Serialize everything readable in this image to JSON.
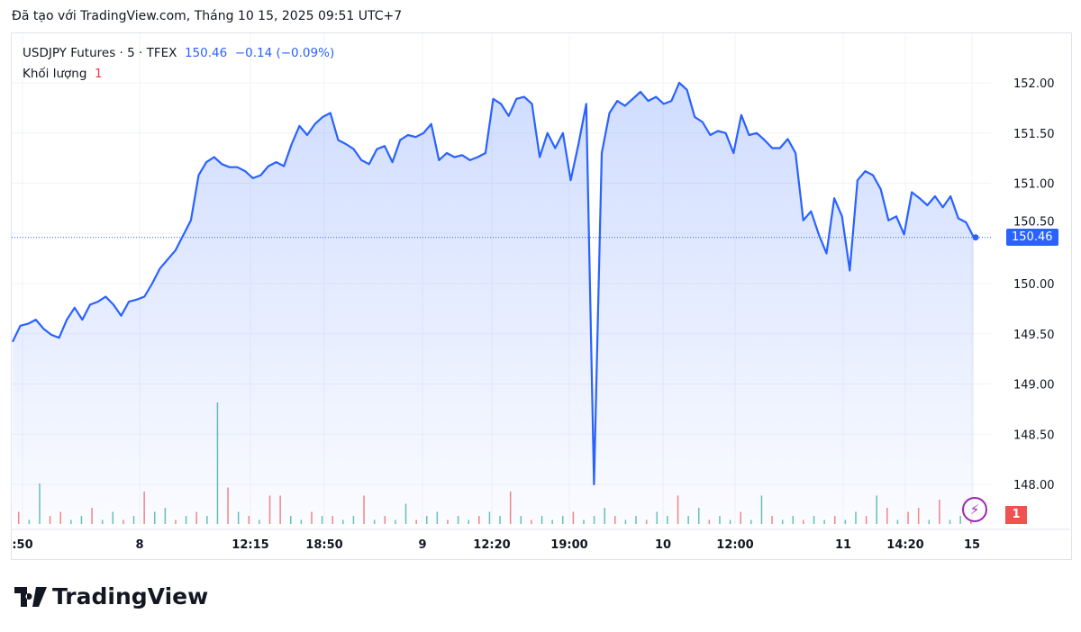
{
  "caption": "Đã tạo với TradingView.com, Tháng 10 15, 2025 09:51 UTC+7",
  "legend": {
    "symbol": "USDJPY Futures · 5 · TFEX",
    "price": "150.46",
    "change": "−0.14 (−0.09%)",
    "volume_label": "Khối lượng",
    "volume_value": "1"
  },
  "logo": "TradingView",
  "colors": {
    "line": "#2962ff",
    "up": "#26a69a",
    "down": "#ef5350",
    "alert": "#9c27b0"
  },
  "chart_data": {
    "type": "area",
    "ylim": [
      147.9,
      152.4
    ],
    "y_ticks": [
      "152.00",
      "151.50",
      "151.00",
      "150.50",
      "150.00",
      "149.50",
      "149.00",
      "148.50",
      "148.00"
    ],
    "x_ticks": [
      ":50",
      "8",
      "12:15",
      "18:50",
      "9",
      "12:20",
      "19:00",
      "10",
      "12:00",
      "11",
      "14:20",
      "15"
    ],
    "last_price": "150.46",
    "volume_last": "1",
    "values": [
      149.42,
      149.58,
      149.6,
      149.64,
      149.55,
      149.49,
      149.46,
      149.64,
      149.76,
      149.64,
      149.79,
      149.82,
      149.87,
      149.79,
      149.68,
      149.82,
      149.84,
      149.87,
      150.0,
      150.15,
      150.24,
      150.33,
      150.48,
      150.63,
      151.08,
      151.21,
      151.26,
      151.19,
      151.16,
      151.16,
      151.12,
      151.05,
      151.08,
      151.17,
      151.21,
      151.17,
      151.39,
      151.57,
      151.48,
      151.59,
      151.66,
      151.7,
      151.43,
      151.39,
      151.34,
      151.23,
      151.19,
      151.34,
      151.37,
      151.21,
      151.43,
      151.48,
      151.46,
      151.5,
      151.59,
      151.23,
      151.3,
      151.26,
      151.28,
      151.23,
      151.26,
      151.3,
      151.84,
      151.79,
      151.67,
      151.84,
      151.86,
      151.79,
      151.26,
      151.5,
      151.35,
      151.5,
      151.03,
      151.39,
      151.79,
      148.0,
      151.3,
      151.7,
      151.82,
      151.77,
      151.84,
      151.91,
      151.82,
      151.86,
      151.79,
      151.82,
      152.0,
      151.93,
      151.66,
      151.61,
      151.48,
      151.52,
      151.5,
      151.3,
      151.68,
      151.48,
      151.5,
      151.43,
      151.35,
      151.35,
      151.44,
      151.3,
      150.63,
      150.72,
      150.49,
      150.3,
      150.85,
      150.67,
      150.13,
      151.03,
      151.12,
      151.08,
      150.94,
      150.63,
      150.67,
      150.49,
      150.91,
      150.85,
      150.78,
      150.87,
      150.76,
      150.87,
      150.65,
      150.61,
      150.46
    ],
    "volume": [
      {
        "v": 3,
        "c": "down"
      },
      {
        "v": 1,
        "c": "up"
      },
      {
        "v": 10,
        "c": "up"
      },
      {
        "v": 2,
        "c": "down"
      },
      {
        "v": 3,
        "c": "down"
      },
      {
        "v": 1,
        "c": "up"
      },
      {
        "v": 2,
        "c": "up"
      },
      {
        "v": 4,
        "c": "down"
      },
      {
        "v": 1,
        "c": "up"
      },
      {
        "v": 3,
        "c": "up"
      },
      {
        "v": 1,
        "c": "down"
      },
      {
        "v": 2,
        "c": "up"
      },
      {
        "v": 8,
        "c": "down"
      },
      {
        "v": 3,
        "c": "up"
      },
      {
        "v": 4,
        "c": "up"
      },
      {
        "v": 1,
        "c": "down"
      },
      {
        "v": 2,
        "c": "up"
      },
      {
        "v": 3,
        "c": "down"
      },
      {
        "v": 2,
        "c": "up"
      },
      {
        "v": 30,
        "c": "up"
      },
      {
        "v": 9,
        "c": "down"
      },
      {
        "v": 3,
        "c": "up"
      },
      {
        "v": 2,
        "c": "down"
      },
      {
        "v": 1,
        "c": "up"
      },
      {
        "v": 7,
        "c": "down"
      },
      {
        "v": 7,
        "c": "down"
      },
      {
        "v": 2,
        "c": "up"
      },
      {
        "v": 1,
        "c": "up"
      },
      {
        "v": 3,
        "c": "down"
      },
      {
        "v": 2,
        "c": "up"
      },
      {
        "v": 2,
        "c": "down"
      },
      {
        "v": 1,
        "c": "up"
      },
      {
        "v": 2,
        "c": "up"
      },
      {
        "v": 7,
        "c": "down"
      },
      {
        "v": 1,
        "c": "up"
      },
      {
        "v": 2,
        "c": "down"
      },
      {
        "v": 1,
        "c": "up"
      },
      {
        "v": 5,
        "c": "up"
      },
      {
        "v": 1,
        "c": "down"
      },
      {
        "v": 2,
        "c": "up"
      },
      {
        "v": 3,
        "c": "up"
      },
      {
        "v": 1,
        "c": "down"
      },
      {
        "v": 2,
        "c": "up"
      },
      {
        "v": 1,
        "c": "up"
      },
      {
        "v": 2,
        "c": "down"
      },
      {
        "v": 3,
        "c": "up"
      },
      {
        "v": 2,
        "c": "up"
      },
      {
        "v": 8,
        "c": "down"
      },
      {
        "v": 2,
        "c": "up"
      },
      {
        "v": 1,
        "c": "down"
      },
      {
        "v": 2,
        "c": "up"
      },
      {
        "v": 1,
        "c": "up"
      },
      {
        "v": 2,
        "c": "up"
      },
      {
        "v": 3,
        "c": "down"
      },
      {
        "v": 1,
        "c": "up"
      },
      {
        "v": 2,
        "c": "up"
      },
      {
        "v": 4,
        "c": "up"
      },
      {
        "v": 2,
        "c": "down"
      },
      {
        "v": 1,
        "c": "up"
      },
      {
        "v": 2,
        "c": "up"
      },
      {
        "v": 1,
        "c": "down"
      },
      {
        "v": 3,
        "c": "up"
      },
      {
        "v": 2,
        "c": "up"
      },
      {
        "v": 7,
        "c": "down"
      },
      {
        "v": 2,
        "c": "up"
      },
      {
        "v": 4,
        "c": "up"
      },
      {
        "v": 1,
        "c": "down"
      },
      {
        "v": 2,
        "c": "up"
      },
      {
        "v": 1,
        "c": "up"
      },
      {
        "v": 3,
        "c": "down"
      },
      {
        "v": 1,
        "c": "up"
      },
      {
        "v": 7,
        "c": "up"
      },
      {
        "v": 2,
        "c": "down"
      },
      {
        "v": 1,
        "c": "up"
      },
      {
        "v": 2,
        "c": "up"
      },
      {
        "v": 1,
        "c": "down"
      },
      {
        "v": 2,
        "c": "up"
      },
      {
        "v": 1,
        "c": "up"
      },
      {
        "v": 2,
        "c": "down"
      },
      {
        "v": 1,
        "c": "up"
      },
      {
        "v": 3,
        "c": "up"
      },
      {
        "v": 2,
        "c": "down"
      },
      {
        "v": 7,
        "c": "up"
      },
      {
        "v": 4,
        "c": "down"
      },
      {
        "v": 1,
        "c": "up"
      },
      {
        "v": 3,
        "c": "down"
      },
      {
        "v": 4,
        "c": "down"
      },
      {
        "v": 1,
        "c": "up"
      },
      {
        "v": 6,
        "c": "down"
      },
      {
        "v": 1,
        "c": "up"
      },
      {
        "v": 2,
        "c": "up"
      },
      {
        "v": 1,
        "c": "down"
      }
    ]
  }
}
